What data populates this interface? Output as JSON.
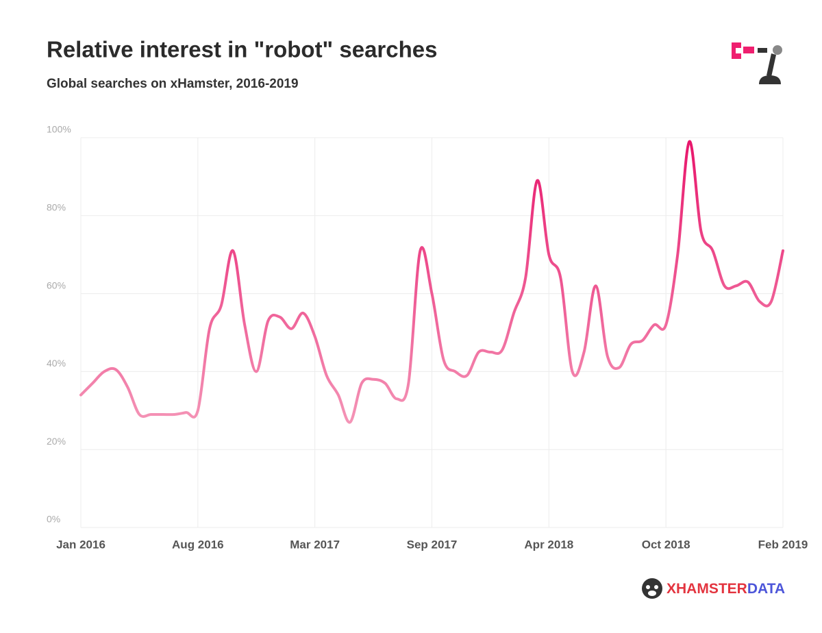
{
  "chart_data": {
    "type": "line",
    "title": "Relative interest in \"robot\" searches",
    "subtitle": "Global searches on xHamster, 2016-2019",
    "categories": [
      "Jan 2016",
      null,
      null,
      null,
      null,
      null,
      null,
      null,
      null,
      null,
      "Aug 2016",
      null,
      null,
      null,
      null,
      null,
      null,
      null,
      null,
      null,
      "Mar 2017",
      null,
      null,
      null,
      null,
      null,
      null,
      null,
      null,
      null,
      "Sep 2017",
      null,
      null,
      null,
      null,
      null,
      null,
      null,
      null,
      null,
      "Apr 2018",
      null,
      null,
      null,
      null,
      null,
      null,
      null,
      null,
      null,
      "Oct 2018",
      null,
      null,
      null,
      null,
      null,
      null,
      null,
      null,
      null,
      "Feb 2019"
    ],
    "series": [
      {
        "name": "robot",
        "gradient_colors": [
          "#f5a0bd",
          "#e8156b"
        ],
        "values": [
          34,
          37,
          40,
          40.5,
          36,
          29,
          29,
          29,
          29,
          29.5,
          30,
          51,
          57,
          71,
          52,
          40,
          53,
          54,
          51,
          55,
          49,
          39,
          34,
          27,
          37,
          38,
          37,
          33,
          37,
          71,
          60,
          43,
          40,
          39,
          45,
          45,
          45.5,
          55,
          64,
          89,
          70,
          64,
          40,
          45,
          62,
          44,
          41,
          47,
          48,
          52,
          52,
          70,
          99,
          76,
          71,
          62,
          62,
          63,
          58,
          58,
          71
        ]
      }
    ],
    "ylim": [
      0,
      100
    ],
    "yticks": [
      {
        "value": 0,
        "label": "0%"
      },
      {
        "value": 20,
        "label": "20%"
      },
      {
        "value": 40,
        "label": "40%"
      },
      {
        "value": 60,
        "label": "60%"
      },
      {
        "value": 80,
        "label": "80%"
      },
      {
        "value": 100,
        "label": "100%"
      }
    ],
    "grid": true
  },
  "footer": {
    "brand": "XHAMSTER",
    "brand_suffix": "DATA"
  }
}
